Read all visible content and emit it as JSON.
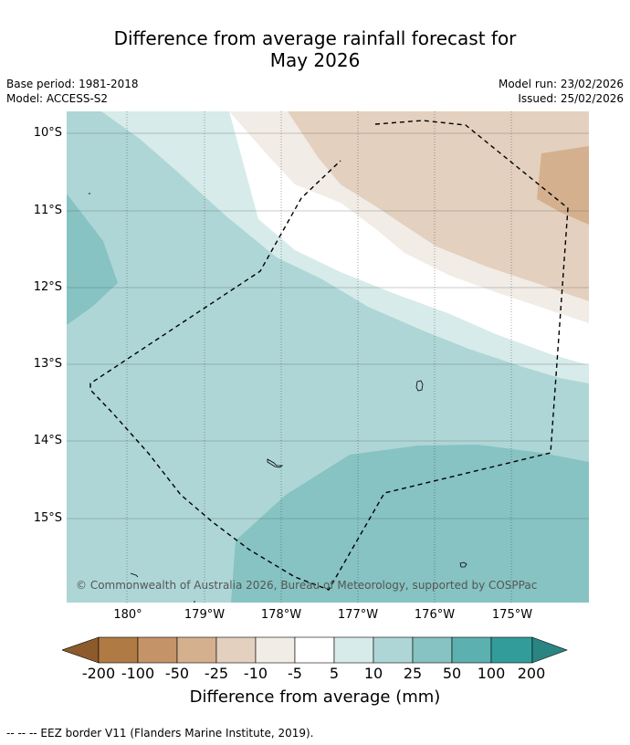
{
  "header": {
    "title_line1": "Difference from average rainfall forecast for",
    "title_line2": "May 2026",
    "base_period": "Base period: 1981-2018",
    "model": "Model: ACCESS-S2",
    "model_run": "Model run: 23/02/2026",
    "issued": "Issued: 25/02/2026"
  },
  "map": {
    "copyright": "© Commonwealth of Australia 2026, Bureau of Meteorology, supported by COSPPac",
    "lat_labels": [
      "10°S",
      "11°S",
      "12°S",
      "13°S",
      "14°S",
      "15°S"
    ],
    "lon_labels": [
      "180°",
      "179°W",
      "178°W",
      "177°W",
      "176°W",
      "175°W"
    ]
  },
  "colorbar": {
    "title": "Difference from average (mm)",
    "ticks": [
      "-200",
      "-100",
      "-50",
      "-25",
      "-10",
      "-5",
      "5",
      "10",
      "25",
      "50",
      "100",
      "200"
    ],
    "colors": [
      "#8c5a2b",
      "#b07a44",
      "#c49468",
      "#d4b08e",
      "#e3d0bf",
      "#f2ece6",
      "#ffffff",
      "#d6ebea",
      "#aed6d6",
      "#86c3c2",
      "#5cb0b0",
      "#329c9a",
      "#2a8582"
    ]
  },
  "footer": {
    "eez_note": "--  --  -- EEZ border V11 (Flanders Marine Institute, 2019)."
  }
}
